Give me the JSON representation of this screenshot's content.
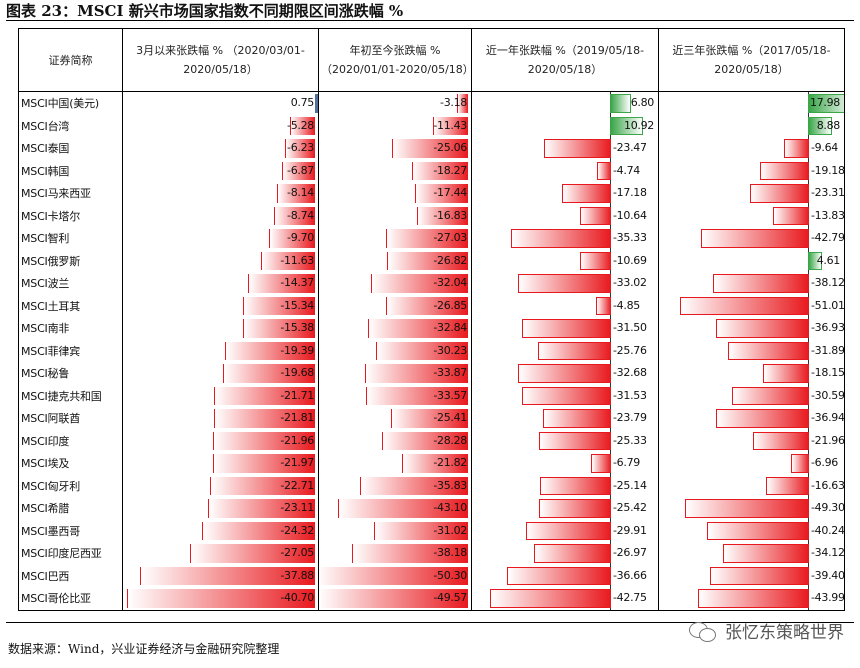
{
  "title": "图表 23：MSCI 新兴市场国家指数不同期限区间涨跌幅 %",
  "headers": [
    "证券简称",
    "3月以来张跌幅 % （2020/03/01-2020/05/18）",
    "年初至今张跌幅 % （2020/01/01-2020/05/18）",
    "近一年张跌幅 %（2019/05/18-2020/05/18）",
    "近三年张跌幅 %（2017/05/18-2020/05/18）"
  ],
  "rows": [
    {
      "name": "MSCI中国(美元)",
      "v": [
        "0.75",
        "-3.18",
        "6.80",
        "17.98"
      ]
    },
    {
      "name": "MSCI台湾",
      "v": [
        "-5.28",
        "-11.43",
        "10.92",
        "8.88"
      ]
    },
    {
      "name": "MSCI泰国",
      "v": [
        "-6.23",
        "-25.06",
        "-23.47",
        "-9.64"
      ]
    },
    {
      "name": "MSCI韩国",
      "v": [
        "-6.87",
        "-18.27",
        "-4.74",
        "-19.18"
      ]
    },
    {
      "name": "MSCI马来西亚",
      "v": [
        "-8.14",
        "-17.44",
        "-17.18",
        "-23.31"
      ]
    },
    {
      "name": "MSCI卡塔尔",
      "v": [
        "-8.74",
        "-16.83",
        "-10.64",
        "-13.83"
      ]
    },
    {
      "name": "MSCI智利",
      "v": [
        "-9.70",
        "-27.03",
        "-35.33",
        "-42.79"
      ]
    },
    {
      "name": "MSCI俄罗斯",
      "v": [
        "-11.63",
        "-26.82",
        "-10.69",
        "4.61"
      ]
    },
    {
      "name": "MSCI波兰",
      "v": [
        "-14.37",
        "-32.04",
        "-33.02",
        "-38.12"
      ]
    },
    {
      "name": "MSCI土耳其",
      "v": [
        "-15.34",
        "-26.85",
        "-4.85",
        "-51.01"
      ]
    },
    {
      "name": "MSCI南非",
      "v": [
        "-15.38",
        "-32.84",
        "-31.50",
        "-36.93"
      ]
    },
    {
      "name": "MSCI菲律宾",
      "v": [
        "-19.39",
        "-30.23",
        "-25.76",
        "-31.89"
      ]
    },
    {
      "name": "MSCI秘鲁",
      "v": [
        "-19.68",
        "-33.87",
        "-32.68",
        "-18.15"
      ]
    },
    {
      "name": "MSCI捷克共和国",
      "v": [
        "-21.71",
        "-33.57",
        "-31.53",
        "-30.59"
      ]
    },
    {
      "name": "MSCI阿联酋",
      "v": [
        "-21.81",
        "-25.41",
        "-23.79",
        "-36.94"
      ]
    },
    {
      "name": "MSCI印度",
      "v": [
        "-21.96",
        "-28.28",
        "-25.33",
        "-21.96"
      ]
    },
    {
      "name": "MSCI埃及",
      "v": [
        "-21.97",
        "-21.82",
        "-6.79",
        "-6.96"
      ]
    },
    {
      "name": "MSCI匈牙利",
      "v": [
        "-22.71",
        "-35.83",
        "-25.14",
        "-16.63"
      ]
    },
    {
      "name": "MSCI希腊",
      "v": [
        "-23.11",
        "-43.10",
        "-25.42",
        "-49.30"
      ]
    },
    {
      "name": "MSCI墨西哥",
      "v": [
        "-24.32",
        "-31.02",
        "-29.91",
        "-40.24"
      ]
    },
    {
      "name": "MSCI印度尼西亚",
      "v": [
        "-27.05",
        "-38.18",
        "-26.97",
        "-34.12"
      ]
    },
    {
      "name": "MSCI巴西",
      "v": [
        "-37.88",
        "-50.30",
        "-36.66",
        "-39.40"
      ]
    },
    {
      "name": "MSCI哥伦比亚",
      "v": [
        "-40.70",
        "-49.57",
        "-42.75",
        "-43.99"
      ]
    }
  ],
  "source": "数据来源：Wind，兴业证券经济与金融研究院整理",
  "watermark": "张忆东策略世界",
  "colors": {
    "negative": "#e8191e",
    "positive": "#3aa648",
    "axis": "#4f6f9f"
  }
}
